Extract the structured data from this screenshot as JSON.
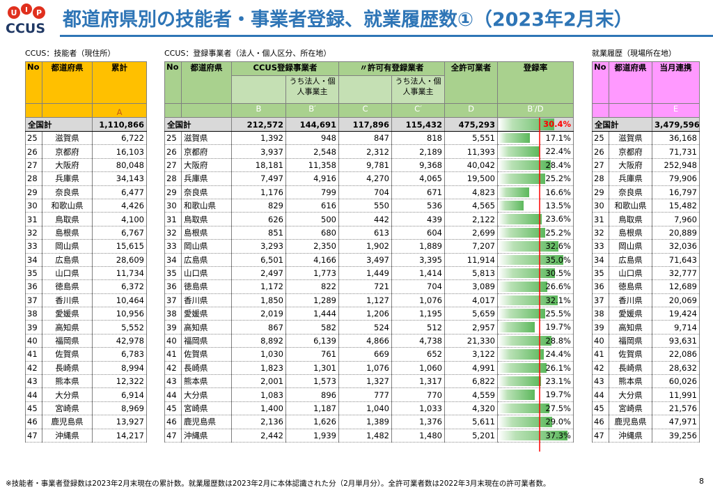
{
  "logo": {
    "text": "CCUS",
    "dots": [
      "U",
      "I",
      "P"
    ]
  },
  "title": "都道府県別の技能者・事業者登録、就業履歴数①（2023年2月末）",
  "sections": {
    "workers": "CCUS：技能者（現住所）",
    "operators": "CCUS：登録事業者（法人・個人区分、所在地）",
    "history": "就業履歴（現場所在地）"
  },
  "headers": {
    "no": "No",
    "pref": "都道府県",
    "cumulative": "累計",
    "ccus_operators": "CCUS登録事業者",
    "licensed_operators": "〃許可有登録業者",
    "corporate_individual": "うち法人・個人事業主",
    "total_licensed": "全許可業者",
    "rate": "登録率",
    "monthly": "当月連携",
    "letters": {
      "A": "A",
      "B": "B",
      "B2": "B′",
      "C": "C",
      "C2": "C′",
      "D": "D",
      "BD": "B′/D",
      "E": "E"
    }
  },
  "totals": {
    "label": "全国計",
    "A": "1,110,866",
    "B": "212,572",
    "B2": "144,691",
    "C": "117,896",
    "C2": "115,432",
    "D": "475,293",
    "rate": "30.4%",
    "rate_value": 30.4,
    "E": "3,479,596"
  },
  "rows": [
    {
      "no": "25",
      "pref": "滋賀県",
      "A": "6,722",
      "B": "1,392",
      "B2": "948",
      "C": "847",
      "C2": "818",
      "D": "5,551",
      "rate": "17.1%",
      "rate_value": 17.1,
      "E": "36,168"
    },
    {
      "no": "26",
      "pref": "京都府",
      "A": "16,103",
      "B": "3,937",
      "B2": "2,548",
      "C": "2,312",
      "C2": "2,189",
      "D": "11,393",
      "rate": "22.4%",
      "rate_value": 22.4,
      "E": "71,731"
    },
    {
      "no": "27",
      "pref": "大阪府",
      "A": "80,048",
      "B": "18,181",
      "B2": "11,358",
      "C": "9,781",
      "C2": "9,368",
      "D": "40,042",
      "rate": "28.4%",
      "rate_value": 28.4,
      "E": "252,948"
    },
    {
      "no": "28",
      "pref": "兵庫県",
      "A": "34,143",
      "B": "7,497",
      "B2": "4,916",
      "C": "4,270",
      "C2": "4,065",
      "D": "19,500",
      "rate": "25.2%",
      "rate_value": 25.2,
      "E": "79,906"
    },
    {
      "no": "29",
      "pref": "奈良県",
      "A": "6,477",
      "B": "1,176",
      "B2": "799",
      "C": "704",
      "C2": "671",
      "D": "4,823",
      "rate": "16.6%",
      "rate_value": 16.6,
      "E": "16,797"
    },
    {
      "no": "30",
      "pref": "和歌山県",
      "A": "4,426",
      "B": "829",
      "B2": "616",
      "C": "550",
      "C2": "536",
      "D": "4,565",
      "rate": "13.5%",
      "rate_value": 13.5,
      "E": "15,482"
    },
    {
      "no": "31",
      "pref": "鳥取県",
      "A": "4,100",
      "B": "626",
      "B2": "500",
      "C": "442",
      "C2": "439",
      "D": "2,122",
      "rate": "23.6%",
      "rate_value": 23.6,
      "E": "7,960"
    },
    {
      "no": "32",
      "pref": "島根県",
      "A": "6,767",
      "B": "851",
      "B2": "680",
      "C": "613",
      "C2": "604",
      "D": "2,699",
      "rate": "25.2%",
      "rate_value": 25.2,
      "E": "20,889"
    },
    {
      "no": "33",
      "pref": "岡山県",
      "A": "15,615",
      "B": "3,293",
      "B2": "2,350",
      "C": "1,902",
      "C2": "1,889",
      "D": "7,207",
      "rate": "32.6%",
      "rate_value": 32.6,
      "E": "32,036"
    },
    {
      "no": "34",
      "pref": "広島県",
      "A": "28,609",
      "B": "6,501",
      "B2": "4,166",
      "C": "3,497",
      "C2": "3,395",
      "D": "11,914",
      "rate": "35.0%",
      "rate_value": 35.0,
      "E": "71,643"
    },
    {
      "no": "35",
      "pref": "山口県",
      "A": "11,734",
      "B": "2,497",
      "B2": "1,773",
      "C": "1,449",
      "C2": "1,414",
      "D": "5,813",
      "rate": "30.5%",
      "rate_value": 30.5,
      "E": "32,777"
    },
    {
      "no": "36",
      "pref": "徳島県",
      "A": "6,372",
      "B": "1,172",
      "B2": "822",
      "C": "721",
      "C2": "704",
      "D": "3,089",
      "rate": "26.6%",
      "rate_value": 26.6,
      "E": "12,689"
    },
    {
      "no": "37",
      "pref": "香川県",
      "A": "10,464",
      "B": "1,850",
      "B2": "1,289",
      "C": "1,127",
      "C2": "1,076",
      "D": "4,017",
      "rate": "32.1%",
      "rate_value": 32.1,
      "E": "20,069"
    },
    {
      "no": "38",
      "pref": "愛媛県",
      "A": "10,956",
      "B": "2,019",
      "B2": "1,444",
      "C": "1,206",
      "C2": "1,195",
      "D": "5,659",
      "rate": "25.5%",
      "rate_value": 25.5,
      "E": "19,424"
    },
    {
      "no": "39",
      "pref": "高知県",
      "A": "5,552",
      "B": "867",
      "B2": "582",
      "C": "524",
      "C2": "512",
      "D": "2,957",
      "rate": "19.7%",
      "rate_value": 19.7,
      "E": "9,714"
    },
    {
      "no": "40",
      "pref": "福岡県",
      "A": "42,978",
      "B": "8,892",
      "B2": "6,139",
      "C": "4,866",
      "C2": "4,738",
      "D": "21,330",
      "rate": "28.8%",
      "rate_value": 28.8,
      "E": "93,631"
    },
    {
      "no": "41",
      "pref": "佐賀県",
      "A": "6,783",
      "B": "1,030",
      "B2": "761",
      "C": "669",
      "C2": "652",
      "D": "3,122",
      "rate": "24.4%",
      "rate_value": 24.4,
      "E": "22,086"
    },
    {
      "no": "42",
      "pref": "長崎県",
      "A": "8,994",
      "B": "1,823",
      "B2": "1,301",
      "C": "1,076",
      "C2": "1,060",
      "D": "4,991",
      "rate": "26.1%",
      "rate_value": 26.1,
      "E": "28,632"
    },
    {
      "no": "43",
      "pref": "熊本県",
      "A": "12,322",
      "B": "2,001",
      "B2": "1,573",
      "C": "1,327",
      "C2": "1,317",
      "D": "6,822",
      "rate": "23.1%",
      "rate_value": 23.1,
      "E": "60,026"
    },
    {
      "no": "44",
      "pref": "大分県",
      "A": "6,914",
      "B": "1,083",
      "B2": "896",
      "C": "777",
      "C2": "770",
      "D": "4,559",
      "rate": "19.7%",
      "rate_value": 19.7,
      "E": "11,991"
    },
    {
      "no": "45",
      "pref": "宮崎県",
      "A": "8,969",
      "B": "1,400",
      "B2": "1,187",
      "C": "1,040",
      "C2": "1,033",
      "D": "4,320",
      "rate": "27.5%",
      "rate_value": 27.5,
      "E": "21,576"
    },
    {
      "no": "46",
      "pref": "鹿児島県",
      "A": "13,927",
      "B": "2,136",
      "B2": "1,626",
      "C": "1,389",
      "C2": "1,376",
      "D": "5,611",
      "rate": "29.0%",
      "rate_value": 29.0,
      "E": "47,971"
    },
    {
      "no": "47",
      "pref": "沖縄県",
      "A": "14,217",
      "B": "2,442",
      "B2": "1,939",
      "C": "1,482",
      "C2": "1,480",
      "D": "5,201",
      "rate": "37.3%",
      "rate_value": 37.3,
      "E": "39,256"
    }
  ],
  "rate_scale_max": 40,
  "colors": {
    "title": "#2e75b6",
    "orange": "#ffc000",
    "green": "#a9d18e",
    "pink": "#ff99ff",
    "bar": "#5cb85c",
    "red": "#ff0000"
  },
  "footnote": "※技能者・事業者登録数は2023年2月末現在の累計数。就業履歴数は2023年2月に本体認識された分（2月単月分）。全許可業者数は2022年3月末現在の許可業者数。",
  "page_number": "8"
}
